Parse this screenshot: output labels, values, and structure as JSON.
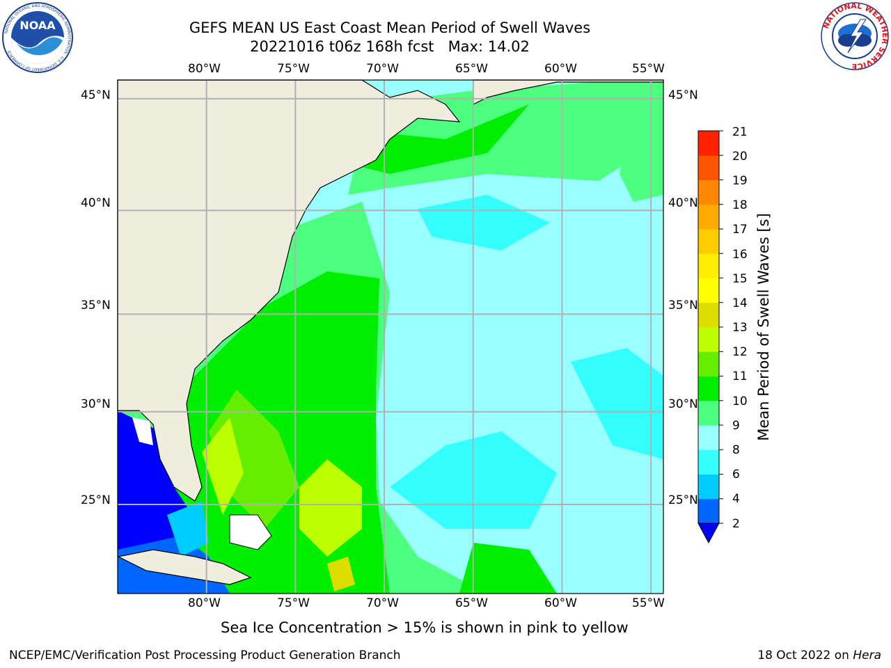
{
  "header": {
    "title_line1": "GEFS MEAN US East Coast Mean Period of Swell Waves",
    "title_line2": "20221016 t06z 168h fcst   Max: 14.02"
  },
  "logos": {
    "noaa": {
      "text": "NOAA",
      "ring_text": "NATIONAL OCEANIC AND ATMOSPHERIC ADMINISTRATION · U.S. DEPARTMENT OF COMMERCE"
    },
    "nws": {
      "ring_text": "NATIONAL WEATHER SERVICE"
    }
  },
  "map": {
    "lon_labels": [
      "80°W",
      "75°W",
      "70°W",
      "65°W",
      "60°W",
      "55°W"
    ],
    "lat_labels": [
      "45°N",
      "40°N",
      "35°N",
      "30°N",
      "25°N"
    ],
    "extent": {
      "lon_min": -85,
      "lon_max": -54.3,
      "lat_min": 20,
      "lat_max": 45.8
    },
    "land_color": "#efedde",
    "grid_color": "#b0b0b0"
  },
  "colorbar": {
    "label": "Mean Period of Swell Waves [s]",
    "ticks": [
      "21",
      "20",
      "19",
      "18",
      "17",
      "16",
      "15",
      "14",
      "13",
      "12",
      "11",
      "10",
      "9",
      "8",
      "6",
      "4",
      "2"
    ],
    "levels": [
      2,
      4,
      6,
      8,
      9,
      10,
      11,
      12,
      13,
      14,
      15,
      16,
      17,
      18,
      19,
      20,
      21
    ],
    "colors": [
      "#0066ff",
      "#00ccff",
      "#33ffff",
      "#99ffff",
      "#4dff7f",
      "#00ee00",
      "#66ee00",
      "#bbff00",
      "#dddd00",
      "#ffff00",
      "#ffee00",
      "#ffcc00",
      "#ffaa00",
      "#ff8800",
      "#ff5500",
      "#ff2200"
    ],
    "under_color": "#0000ff"
  },
  "footnote": "Sea Ice Concentration > 15% is shown in pink to yellow",
  "credits": {
    "left": "NCEP/EMC/Verification Post Processing Product Generation Branch",
    "right_date": "18 Oct 2022 on ",
    "right_machine": "Hera"
  }
}
